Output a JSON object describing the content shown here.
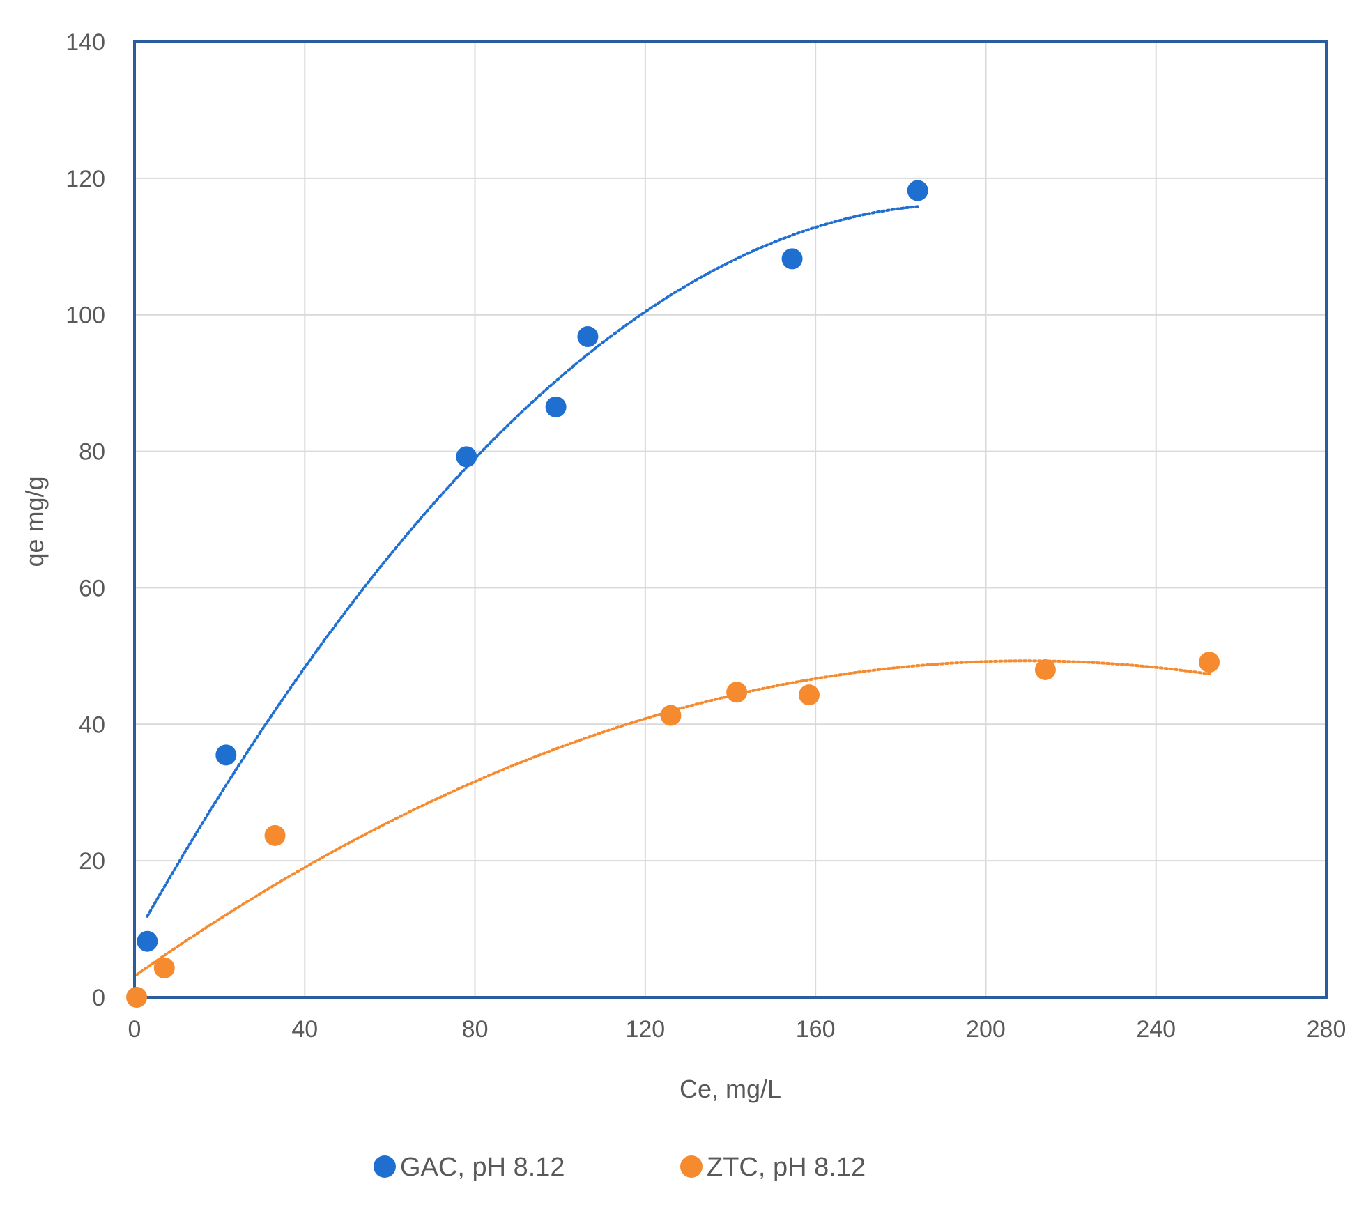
{
  "chart_data": {
    "type": "scatter",
    "title": "",
    "xlabel": "Ce, mg/L",
    "ylabel": "qe mg/g",
    "xlim": [
      0,
      280
    ],
    "ylim": [
      0,
      140
    ],
    "xticks": [
      0,
      40,
      80,
      120,
      160,
      200,
      240,
      280
    ],
    "yticks": [
      0,
      20,
      40,
      60,
      80,
      100,
      120,
      140
    ],
    "x_tick_labels": [
      "0",
      "40",
      "80",
      "120",
      "160",
      "200",
      "240",
      "280"
    ],
    "y_tick_labels": [
      "0",
      "20",
      "40",
      "60",
      "80",
      "100",
      "120",
      "140"
    ],
    "grid": true,
    "legend_position": "bottom",
    "series": [
      {
        "name": "GAC, pH 8.12",
        "color": "#1f6fd1",
        "trendline": "dotted polynomial",
        "points": [
          [
            3,
            8.2
          ],
          [
            21.5,
            35.5
          ],
          [
            78,
            79.2
          ],
          [
            99,
            86.5
          ],
          [
            106.5,
            96.8
          ],
          [
            154.5,
            108.2
          ],
          [
            184,
            118.2
          ]
        ]
      },
      {
        "name": "ZTC, pH 8.12",
        "color": "#f58a2e",
        "trendline": "dotted polynomial",
        "points": [
          [
            0.5,
            0
          ],
          [
            7,
            4.3
          ],
          [
            33,
            23.7
          ],
          [
            126,
            41.3
          ],
          [
            141.5,
            44.7
          ],
          [
            158.5,
            44.3
          ],
          [
            214,
            48
          ],
          [
            252.5,
            49.1
          ]
        ]
      }
    ]
  }
}
